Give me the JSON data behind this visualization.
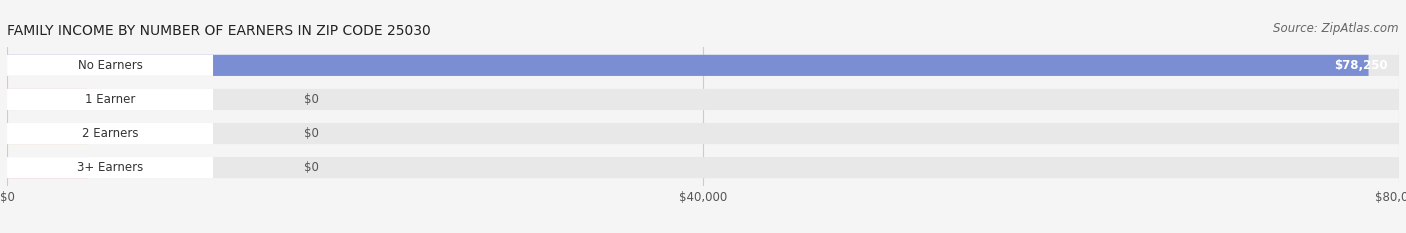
{
  "title": "FAMILY INCOME BY NUMBER OF EARNERS IN ZIP CODE 25030",
  "source": "Source: ZipAtlas.com",
  "categories": [
    "No Earners",
    "1 Earner",
    "2 Earners",
    "3+ Earners"
  ],
  "values": [
    78250,
    0,
    0,
    0
  ],
  "bar_colors": [
    "#7b8ed4",
    "#f4a0b0",
    "#f5c98a",
    "#f4a0a8"
  ],
  "value_labels": [
    "$78,250",
    "$0",
    "$0",
    "$0"
  ],
  "xlim": [
    0,
    80000
  ],
  "xticks": [
    0,
    40000,
    80000
  ],
  "xtick_labels": [
    "$0",
    "$40,000",
    "$80,000"
  ],
  "background_color": "#f5f5f5",
  "bar_background_color": "#e8e8e8",
  "title_fontsize": 10,
  "source_fontsize": 8.5,
  "label_fontsize": 8.5,
  "value_fontsize": 8.5
}
